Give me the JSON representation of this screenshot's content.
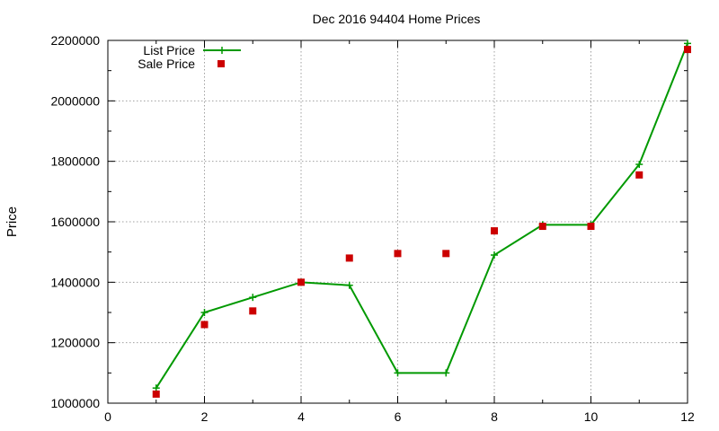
{
  "chart_data": {
    "type": "line",
    "title": "Dec 2016 94404 Home Prices",
    "xlabel": "",
    "ylabel": "Price",
    "xlim": [
      0,
      12
    ],
    "ylim": [
      1000000,
      2200000
    ],
    "x_ticks": [
      "0",
      "2",
      "4",
      "6",
      "8",
      "10",
      "12"
    ],
    "y_ticks": [
      "1000000",
      "1200000",
      "1400000",
      "1600000",
      "1800000",
      "2000000",
      "2200000"
    ],
    "grid": true,
    "legend_position": "top-left",
    "series": [
      {
        "name": "List Price",
        "style": "line-with-plus-markers",
        "color": "#009900",
        "x": [
          1,
          2,
          3,
          4,
          5,
          6,
          7,
          8,
          9,
          10,
          11,
          12
        ],
        "y": [
          1050000,
          1300000,
          1350000,
          1400000,
          1390000,
          1100000,
          1100000,
          1490000,
          1590000,
          1590000,
          1790000,
          2190000
        ]
      },
      {
        "name": "Sale Price",
        "style": "square-markers",
        "color": "#cc0000",
        "x": [
          1,
          2,
          3,
          4,
          5,
          6,
          7,
          8,
          9,
          10,
          11,
          12
        ],
        "y": [
          1030000,
          1260000,
          1305000,
          1400000,
          1480000,
          1495000,
          1495000,
          1570000,
          1585000,
          1585000,
          1755000,
          2170000
        ]
      }
    ]
  }
}
